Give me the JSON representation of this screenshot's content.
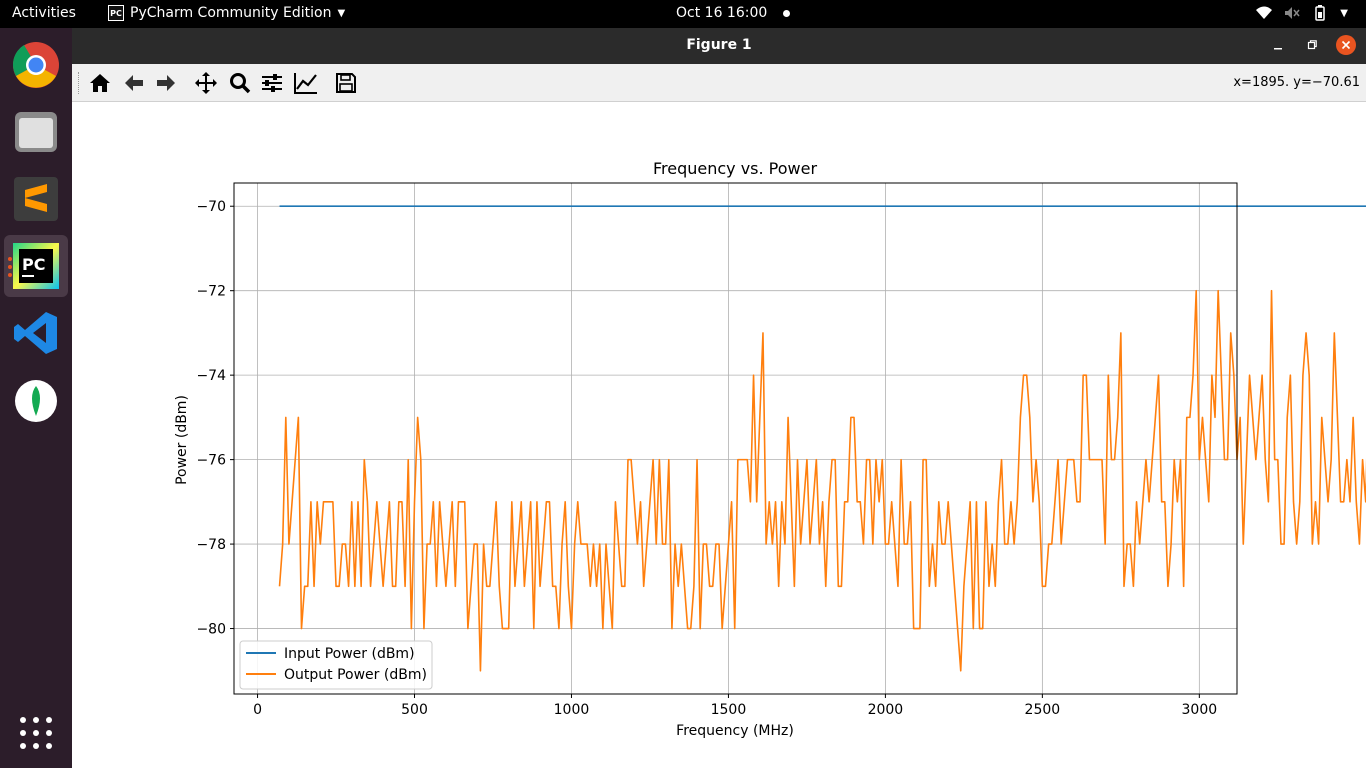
{
  "topbar": {
    "activities": "Activities",
    "app_name": "PyCharm Community Edition",
    "app_icon_text": "PC",
    "clock": "Oct 16  16:00"
  },
  "dock": {
    "items": [
      "chrome-icon",
      "files-icon",
      "sublime-text-icon",
      "pycharm-icon",
      "vscode-icon",
      "mongodb-compass-icon",
      "show-apps-icon"
    ],
    "pycharm_label": "PC"
  },
  "window": {
    "title": "Figure 1",
    "coords": "x=1895. y=−70.61"
  },
  "chart_data": {
    "type": "line",
    "title": "Frequency vs. Power",
    "xlabel": "Frequency (MHz)",
    "ylabel": "Power (dBm)",
    "xlim": [
      -75,
      3120
    ],
    "ylim": [
      -81.55,
      -69.45
    ],
    "xticks": [
      0,
      500,
      1000,
      1500,
      2000,
      2500,
      3000
    ],
    "xtick_labels": [
      "0",
      "500",
      "1000",
      "1500",
      "2000",
      "2500",
      "3000"
    ],
    "yticks": [
      -80,
      -78,
      -76,
      -74,
      -72,
      -70
    ],
    "ytick_labels": [
      "−80",
      "−78",
      "−76",
      "−74",
      "−72",
      "−70"
    ],
    "grid": true,
    "legend_position": "lower-left",
    "x_start": 70,
    "x_step": 10,
    "series": [
      {
        "name": "Input Power (dBm)",
        "color": "#1f77b4",
        "values": [
          -70,
          -70
        ]
      },
      {
        "name": "Output Power (dBm)",
        "color": "#ff7f0e",
        "values": [
          -79,
          -78,
          -75,
          -78,
          -77,
          -76,
          -75,
          -80,
          -79,
          -79,
          -77,
          -79,
          -77,
          -78,
          -77,
          -77,
          -77,
          -77,
          -79,
          -79,
          -78,
          -78,
          -79,
          -77,
          -79,
          -77,
          -79,
          -76,
          -77,
          -79,
          -78,
          -77,
          -78,
          -79,
          -78,
          -77,
          -79,
          -79,
          -77,
          -77,
          -79,
          -76,
          -80,
          -77,
          -75,
          -76,
          -80,
          -78,
          -78,
          -77,
          -79,
          -77,
          -78,
          -79,
          -78,
          -77,
          -79,
          -77,
          -77,
          -77,
          -80,
          -79,
          -78,
          -78,
          -81,
          -78,
          -79,
          -79,
          -78,
          -77,
          -79,
          -80,
          -80,
          -80,
          -77,
          -79,
          -78,
          -77,
          -79,
          -78,
          -77,
          -80,
          -77,
          -79,
          -78,
          -77,
          -77,
          -79,
          -79,
          -80,
          -78,
          -77,
          -79,
          -80,
          -78,
          -77,
          -78,
          -78,
          -78,
          -79,
          -78,
          -79,
          -78,
          -80,
          -78,
          -79,
          -80,
          -77,
          -78,
          -79,
          -79,
          -76,
          -76,
          -77,
          -78,
          -77,
          -79,
          -78,
          -77,
          -76,
          -78,
          -76,
          -78,
          -78,
          -76,
          -80,
          -78,
          -79,
          -78,
          -79,
          -80,
          -80,
          -79,
          -76,
          -80,
          -78,
          -78,
          -79,
          -79,
          -78,
          -78,
          -80,
          -79,
          -78,
          -77,
          -80,
          -76,
          -76,
          -76,
          -76,
          -77,
          -74,
          -77,
          -75,
          -73,
          -78,
          -77,
          -78,
          -77,
          -79,
          -77,
          -78,
          -75,
          -77,
          -79,
          -76,
          -78,
          -77,
          -76,
          -78,
          -77,
          -76,
          -78,
          -77,
          -79,
          -77,
          -76,
          -76,
          -79,
          -79,
          -77,
          -77,
          -75,
          -75,
          -77,
          -77,
          -78,
          -76,
          -76,
          -78,
          -76,
          -77,
          -76,
          -78,
          -78,
          -77,
          -78,
          -79,
          -76,
          -78,
          -78,
          -77,
          -80,
          -80,
          -80,
          -76,
          -76,
          -79,
          -78,
          -79,
          -77,
          -78,
          -78,
          -77,
          -78,
          -79,
          -80,
          -81,
          -79,
          -78,
          -77,
          -80,
          -77,
          -80,
          -80,
          -77,
          -79,
          -78,
          -79,
          -77,
          -76,
          -78,
          -78,
          -77,
          -78,
          -77,
          -75,
          -74,
          -74,
          -75,
          -77,
          -76,
          -77,
          -79,
          -79,
          -78,
          -78,
          -77,
          -76,
          -78,
          -77,
          -76,
          -76,
          -76,
          -77,
          -77,
          -74,
          -74,
          -76,
          -76,
          -76,
          -76,
          -76,
          -78,
          -74,
          -76,
          -76,
          -75,
          -73,
          -79,
          -78,
          -78,
          -79,
          -77,
          -78,
          -77,
          -76,
          -77,
          -76,
          -75,
          -74,
          -77,
          -77,
          -79,
          -78,
          -76,
          -77,
          -76,
          -79,
          -75,
          -75,
          -74,
          -72,
          -76,
          -75,
          -76,
          -77,
          -74,
          -75,
          -72,
          -74,
          -76,
          -76,
          -73,
          -74,
          -76,
          -75,
          -78,
          -76,
          -74,
          -75,
          -76,
          -75,
          -74,
          -76,
          -77,
          -72,
          -76,
          -76,
          -78,
          -78,
          -75,
          -74,
          -77,
          -78,
          -77,
          -74,
          -73,
          -74,
          -78,
          -77,
          -78,
          -75,
          -76,
          -77,
          -76,
          -73,
          -75,
          -77,
          -77,
          -76,
          -77,
          -75,
          -77,
          -78,
          -76,
          -77,
          -74,
          -77,
          -78,
          -78,
          -74,
          -76,
          -77,
          -76,
          -78,
          -78,
          -77,
          -76,
          -78,
          -79,
          -78,
          -75,
          -74,
          -79,
          -78,
          -78,
          -79,
          -79,
          -78,
          -78,
          -77,
          -78,
          -75,
          -75,
          -77,
          -78,
          -77,
          -77,
          -79,
          -78,
          -79,
          -78,
          -77,
          -77,
          -76,
          -74,
          -77,
          -78,
          -78,
          -79
        ]
      }
    ]
  }
}
